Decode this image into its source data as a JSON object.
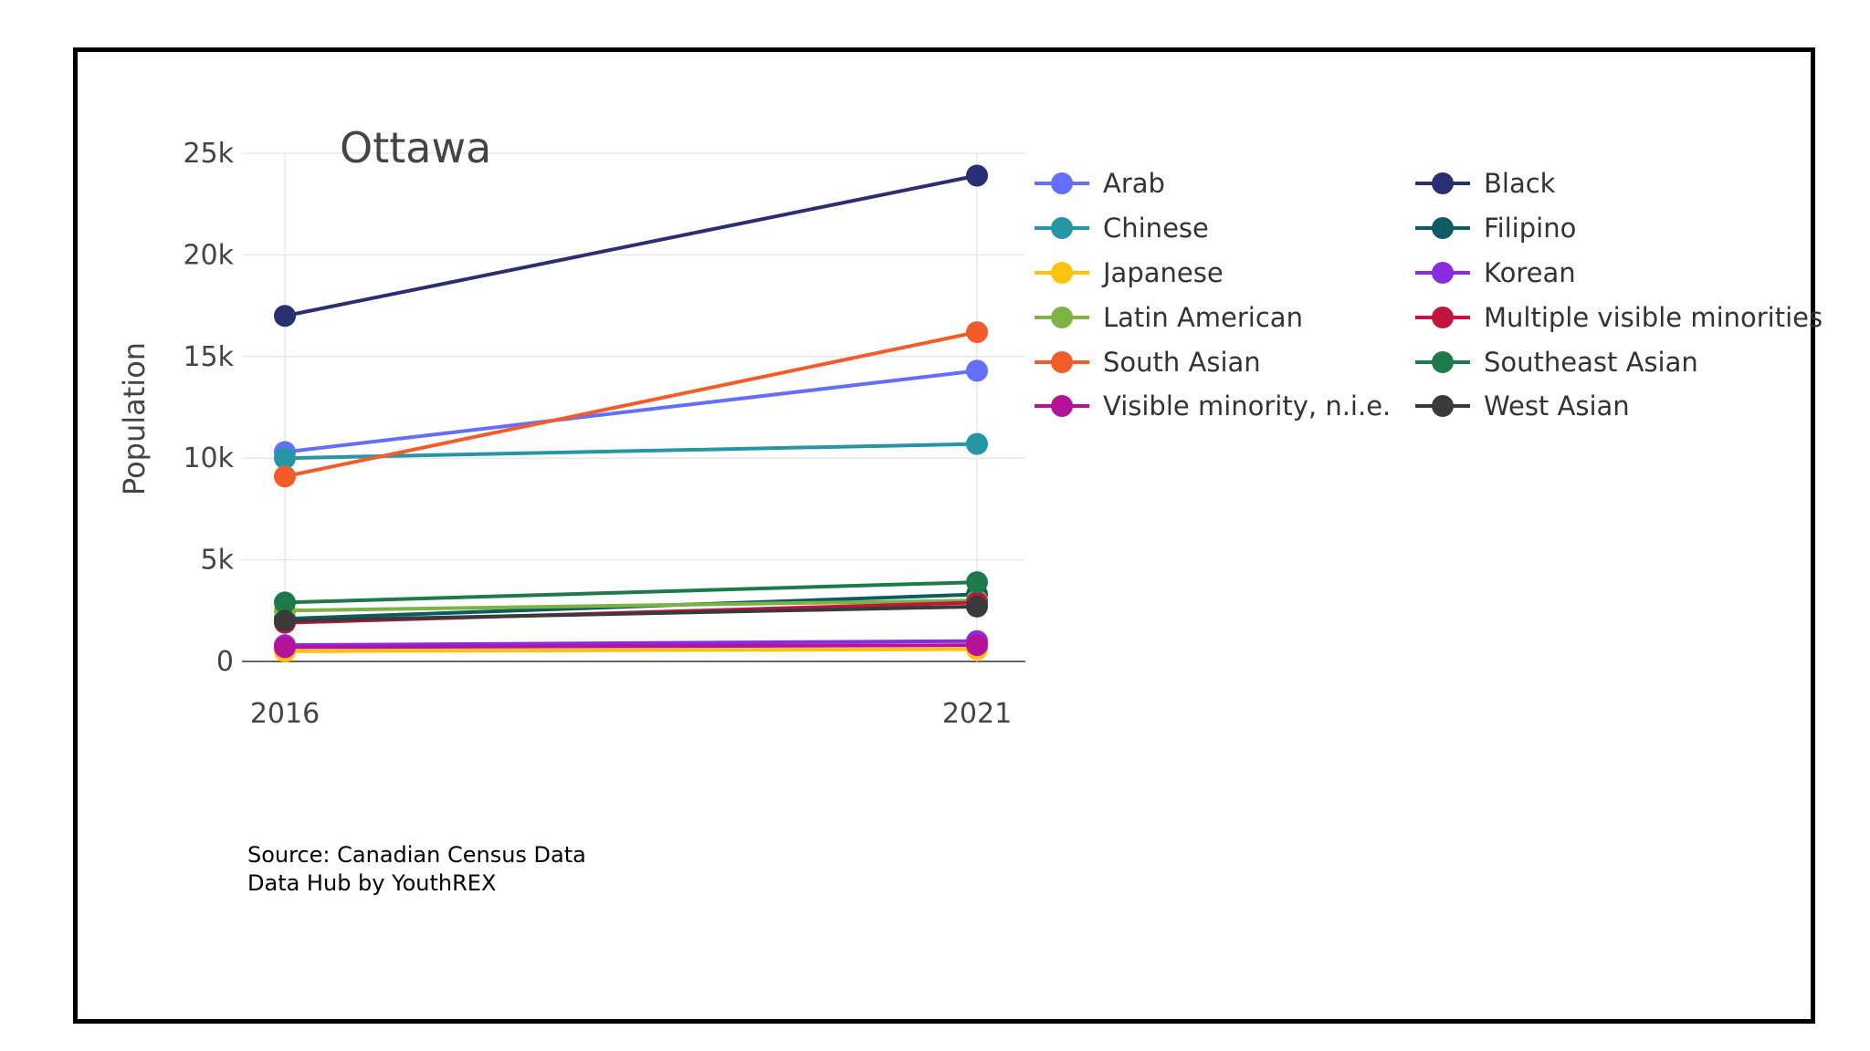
{
  "chart_data": {
    "type": "line",
    "title": "Ottawa",
    "xlabel": "",
    "ylabel": "Population",
    "x": [
      "2016",
      "2021"
    ],
    "ylim": [
      0,
      25000
    ],
    "yticks": [
      0,
      5000,
      10000,
      15000,
      20000,
      25000
    ],
    "ytick_labels": [
      "0",
      "5k",
      "10k",
      "15k",
      "20k",
      "25k"
    ],
    "grid": true,
    "legend_position": "right",
    "series": [
      {
        "name": "Arab",
        "color": "#636efa",
        "values": [
          10300,
          14300
        ]
      },
      {
        "name": "Black",
        "color": "#2a2f73",
        "values": [
          17000,
          23900
        ]
      },
      {
        "name": "Chinese",
        "color": "#2596a6",
        "values": [
          10000,
          10700
        ]
      },
      {
        "name": "Filipino",
        "color": "#0b5c63",
        "values": [
          2100,
          3300
        ]
      },
      {
        "name": "Japanese",
        "color": "#ffc20e",
        "values": [
          500,
          600
        ]
      },
      {
        "name": "Korean",
        "color": "#8a2be2",
        "values": [
          800,
          1000
        ]
      },
      {
        "name": "Latin American",
        "color": "#7cb342",
        "values": [
          2500,
          3000
        ]
      },
      {
        "name": "Multiple visible minorities",
        "color": "#c0163c",
        "values": [
          1900,
          2900
        ]
      },
      {
        "name": "South Asian",
        "color": "#f25c29",
        "values": [
          9100,
          16200
        ]
      },
      {
        "name": "Southeast Asian",
        "color": "#1e7a4a",
        "values": [
          2900,
          3900
        ]
      },
      {
        "name": "Visible minority, n.i.e.",
        "color": "#b5129a",
        "values": [
          700,
          800
        ]
      },
      {
        "name": "West Asian",
        "color": "#3a3a3a",
        "values": [
          2000,
          2700
        ]
      }
    ]
  },
  "source": {
    "line1": "Source: Canadian Census Data",
    "line2": "Data Hub by YouthREX"
  }
}
